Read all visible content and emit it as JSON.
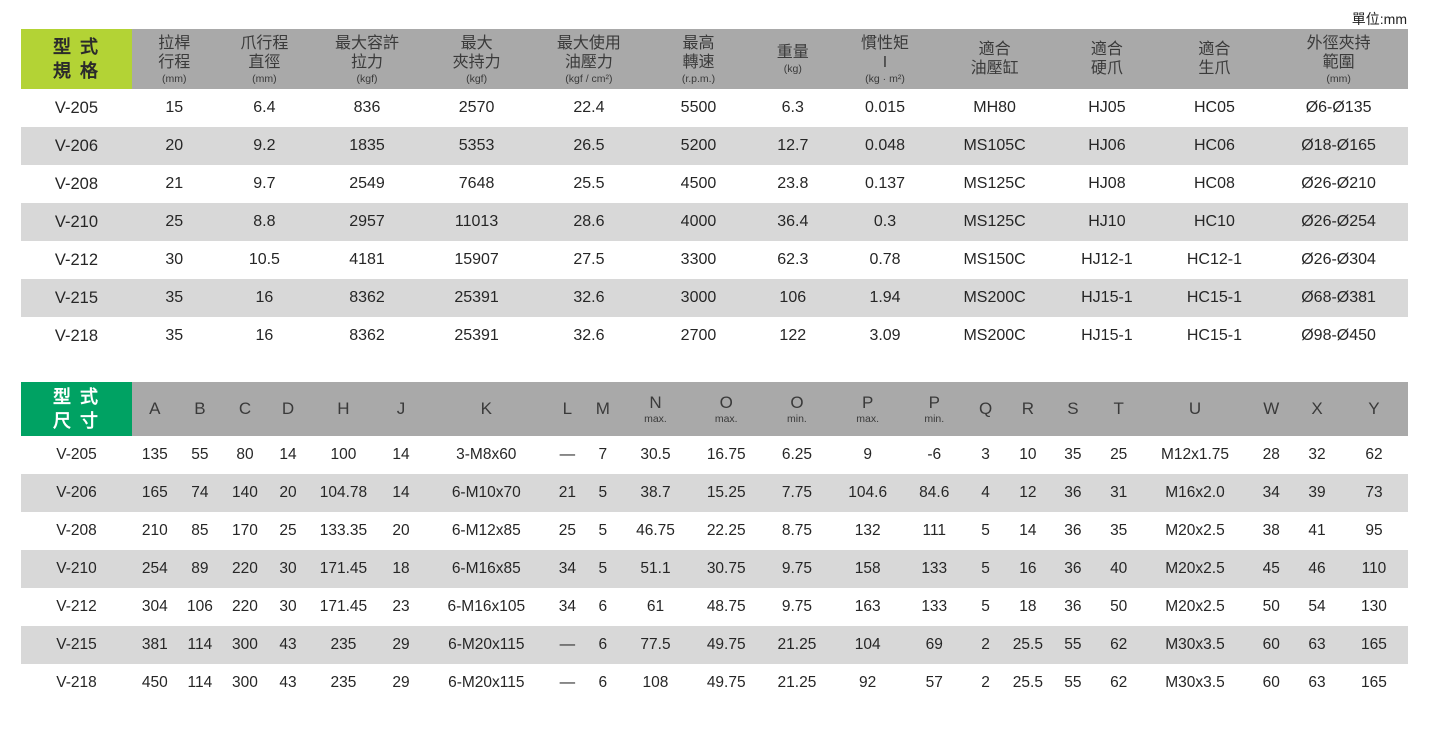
{
  "unit_label": "單位:mm",
  "colors": {
    "lime": "#b3d335",
    "green": "#00a263",
    "header_gray": "#a9a9a9",
    "stripe_gray": "#d8d8d8"
  },
  "spec_table": {
    "corner": [
      "型 式",
      "規 格"
    ],
    "columns": [
      {
        "lines": [
          "拉桿",
          "行程"
        ],
        "unit": "(mm)"
      },
      {
        "lines": [
          "爪行程",
          "直徑"
        ],
        "unit": "(mm)"
      },
      {
        "lines": [
          "最大容許",
          "拉力"
        ],
        "unit": "(kgf)"
      },
      {
        "lines": [
          "最大",
          "夾持力"
        ],
        "unit": "(kgf)"
      },
      {
        "lines": [
          "最大使用",
          "油壓力"
        ],
        "unit": "(kgf / cm²)"
      },
      {
        "lines": [
          "最高",
          "轉速"
        ],
        "unit": "(r.p.m.)"
      },
      {
        "lines": [
          "重量"
        ],
        "unit": "(kg)"
      },
      {
        "lines": [
          "慣性矩",
          "I"
        ],
        "unit": "(kg · m²)"
      },
      {
        "lines": [
          "適合",
          "油壓缸"
        ],
        "unit": ""
      },
      {
        "lines": [
          "適合",
          "硬爪"
        ],
        "unit": ""
      },
      {
        "lines": [
          "適合",
          "生爪"
        ],
        "unit": ""
      },
      {
        "lines": [
          "外徑夾持",
          "範圍"
        ],
        "unit": "(mm)"
      }
    ],
    "rows": [
      [
        "V-205",
        "15",
        "6.4",
        "836",
        "2570",
        "22.4",
        "5500",
        "6.3",
        "0.015",
        "MH80",
        "HJ05",
        "HC05",
        "Ø6-Ø135"
      ],
      [
        "V-206",
        "20",
        "9.2",
        "1835",
        "5353",
        "26.5",
        "5200",
        "12.7",
        "0.048",
        "MS105C",
        "HJ06",
        "HC06",
        "Ø18-Ø165"
      ],
      [
        "V-208",
        "21",
        "9.7",
        "2549",
        "7648",
        "25.5",
        "4500",
        "23.8",
        "0.137",
        "MS125C",
        "HJ08",
        "HC08",
        "Ø26-Ø210"
      ],
      [
        "V-210",
        "25",
        "8.8",
        "2957",
        "11013",
        "28.6",
        "4000",
        "36.4",
        "0.3",
        "MS125C",
        "HJ10",
        "HC10",
        "Ø26-Ø254"
      ],
      [
        "V-212",
        "30",
        "10.5",
        "4181",
        "15907",
        "27.5",
        "3300",
        "62.3",
        "0.78",
        "MS150C",
        "HJ12-1",
        "HC12-1",
        "Ø26-Ø304"
      ],
      [
        "V-215",
        "35",
        "16",
        "8362",
        "25391",
        "32.6",
        "3000",
        "106",
        "1.94",
        "MS200C",
        "HJ15-1",
        "HC15-1",
        "Ø68-Ø381"
      ],
      [
        "V-218",
        "35",
        "16",
        "8362",
        "25391",
        "32.6",
        "2700",
        "122",
        "3.09",
        "MS200C",
        "HJ15-1",
        "HC15-1",
        "Ø98-Ø450"
      ]
    ]
  },
  "dim_table": {
    "corner": [
      "型 式",
      "尺 寸"
    ],
    "columns": [
      {
        "label": "A"
      },
      {
        "label": "B"
      },
      {
        "label": "C"
      },
      {
        "label": "D"
      },
      {
        "label": "H"
      },
      {
        "label": "J"
      },
      {
        "label": "K"
      },
      {
        "label": "L"
      },
      {
        "label": "M"
      },
      {
        "label": "N",
        "sub": "max."
      },
      {
        "label": "O",
        "sub": "max."
      },
      {
        "label": "O",
        "sub": "min."
      },
      {
        "label": "P",
        "sub": "max."
      },
      {
        "label": "P",
        "sub": "min."
      },
      {
        "label": "Q"
      },
      {
        "label": "R"
      },
      {
        "label": "S"
      },
      {
        "label": "T"
      },
      {
        "label": "U"
      },
      {
        "label": "W"
      },
      {
        "label": "X"
      },
      {
        "label": "Y"
      }
    ],
    "rows": [
      [
        "V-205",
        "135",
        "55",
        "80",
        "14",
        "100",
        "14",
        "3-M8x60",
        "—",
        "7",
        "30.5",
        "16.75",
        "6.25",
        "9",
        "-6",
        "3",
        "10",
        "35",
        "25",
        "M12x1.75",
        "28",
        "32",
        "62"
      ],
      [
        "V-206",
        "165",
        "74",
        "140",
        "20",
        "104.78",
        "14",
        "6-M10x70",
        "21",
        "5",
        "38.7",
        "15.25",
        "7.75",
        "104.6",
        "84.6",
        "4",
        "12",
        "36",
        "31",
        "M16x2.0",
        "34",
        "39",
        "73"
      ],
      [
        "V-208",
        "210",
        "85",
        "170",
        "25",
        "133.35",
        "20",
        "6-M12x85",
        "25",
        "5",
        "46.75",
        "22.25",
        "8.75",
        "132",
        "111",
        "5",
        "14",
        "36",
        "35",
        "M20x2.5",
        "38",
        "41",
        "95"
      ],
      [
        "V-210",
        "254",
        "89",
        "220",
        "30",
        "171.45",
        "18",
        "6-M16x85",
        "34",
        "5",
        "51.1",
        "30.75",
        "9.75",
        "158",
        "133",
        "5",
        "16",
        "36",
        "40",
        "M20x2.5",
        "45",
        "46",
        "110"
      ],
      [
        "V-212",
        "304",
        "106",
        "220",
        "30",
        "171.45",
        "23",
        "6-M16x105",
        "34",
        "6",
        "61",
        "48.75",
        "9.75",
        "163",
        "133",
        "5",
        "18",
        "36",
        "50",
        "M20x2.5",
        "50",
        "54",
        "130"
      ],
      [
        "V-215",
        "381",
        "114",
        "300",
        "43",
        "235",
        "29",
        "6-M20x115",
        "—",
        "6",
        "77.5",
        "49.75",
        "21.25",
        "104",
        "69",
        "2",
        "25.5",
        "55",
        "62",
        "M30x3.5",
        "60",
        "63",
        "165"
      ],
      [
        "V-218",
        "450",
        "114",
        "300",
        "43",
        "235",
        "29",
        "6-M20x115",
        "—",
        "6",
        "108",
        "49.75",
        "21.25",
        "92",
        "57",
        "2",
        "25.5",
        "55",
        "62",
        "M30x3.5",
        "60",
        "63",
        "165"
      ]
    ]
  }
}
